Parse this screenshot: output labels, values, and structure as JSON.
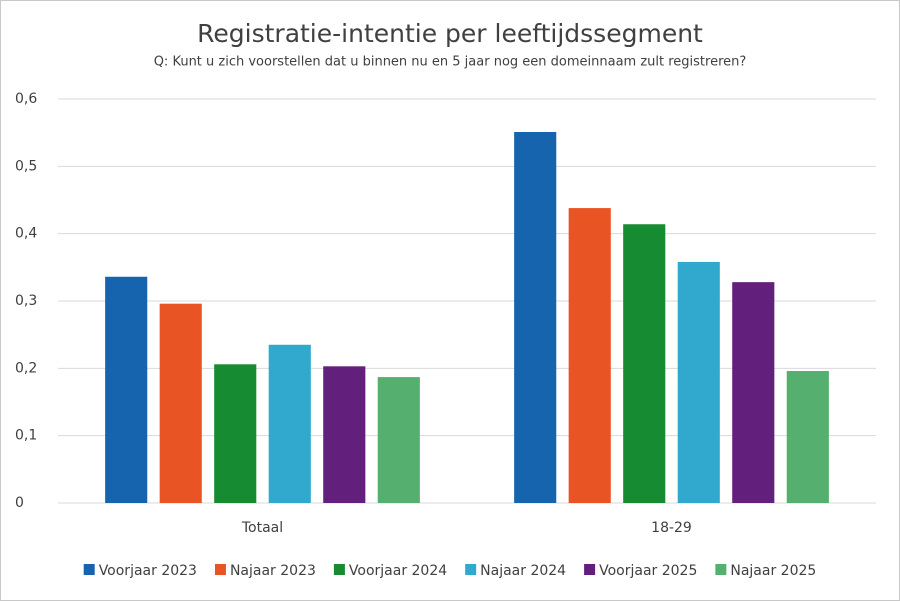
{
  "chart_data": {
    "type": "bar",
    "title": "Registratie-intentie per leeftijdssegment",
    "subtitle": "Q: Kunt u zich voorstellen dat u binnen nu en 5 jaar nog een domeinnaam zult registreren?",
    "categories": [
      "Totaal",
      "18-29"
    ],
    "series": [
      {
        "name": "Voorjaar 2023",
        "color": "#1764ae",
        "values": [
          0.336,
          0.551
        ]
      },
      {
        "name": "Najaar 2023",
        "color": "#e95424",
        "values": [
          0.296,
          0.438
        ]
      },
      {
        "name": "Voorjaar 2024",
        "color": "#178b32",
        "values": [
          0.206,
          0.414
        ]
      },
      {
        "name": "Najaar 2024",
        "color": "#31a9ce",
        "values": [
          0.235,
          0.358
        ]
      },
      {
        "name": "Voorjaar 2025",
        "color": "#621f7c",
        "values": [
          0.203,
          0.328
        ]
      },
      {
        "name": "Najaar 2025",
        "color": "#55b06f",
        "values": [
          0.187,
          0.196
        ]
      }
    ],
    "ylim": [
      0,
      0.6
    ],
    "yticks": [
      0,
      {
        "value": 0.1,
        "label": "0,1"
      },
      {
        "value": 0.2,
        "label": "0,2"
      },
      {
        "value": 0.3,
        "label": "0,3"
      },
      {
        "value": 0.4,
        "label": "0,4"
      },
      {
        "value": 0.5,
        "label": "0,5"
      },
      {
        "value": 0.6,
        "label": "0,6"
      }
    ],
    "grid": true,
    "legend": "bottom"
  }
}
